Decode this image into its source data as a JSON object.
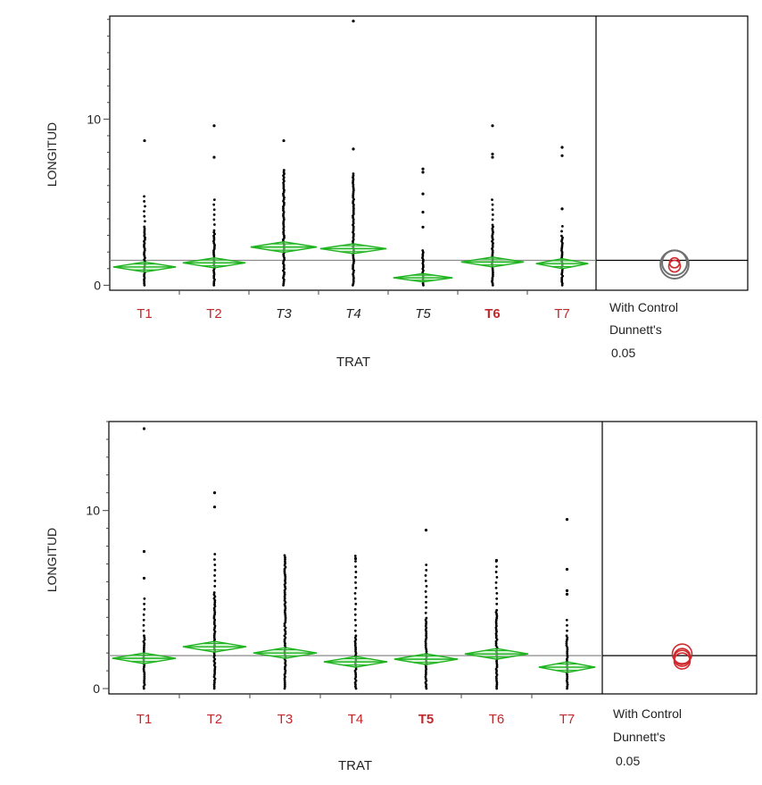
{
  "colors": {
    "diamond": "#1fb31f",
    "diamond_fill": "#bff0bf",
    "points": "#000000",
    "frame": "#000000",
    "grand_mean": "#8a8a8a",
    "sig_label": "#c0282d",
    "normal_label": "#222222",
    "circle_gray": "#707070",
    "circle_red": "#d0282d"
  },
  "chart_data": [
    {
      "type": "scatter",
      "title": "",
      "xlabel": "TRAT",
      "ylabel": "LONGITUD",
      "ylim": [
        -0.3,
        16.2
      ],
      "yticks": [
        0,
        10
      ],
      "categories": [
        "T1",
        "T2",
        "T3",
        "T4",
        "T5",
        "T6",
        "T7"
      ],
      "label_style": [
        "red",
        "red",
        "dark-italic",
        "dark-italic",
        "dark-italic",
        "red-bold",
        "red"
      ],
      "grand_mean": 1.5,
      "means": [
        1.1,
        1.35,
        2.3,
        2.2,
        0.45,
        1.4,
        1.3
      ],
      "ci_halfwidth": [
        0.3,
        0.3,
        0.32,
        0.3,
        0.25,
        0.3,
        0.3
      ],
      "diamond_width": [
        0.9,
        0.9,
        0.95,
        0.95,
        0.85,
        0.9,
        0.75
      ],
      "dense_max": [
        3.6,
        3.4,
        7.0,
        6.8,
        2.2,
        3.7,
        3.0
      ],
      "sparse_max": [
        5.6,
        5.4,
        7.0,
        6.8,
        2.2,
        5.4,
        3.7
      ],
      "outliers": [
        [
          8.7
        ],
        [
          7.7,
          9.6
        ],
        [
          8.7
        ],
        [
          8.2,
          15.9
        ],
        [
          3.5,
          4.4,
          5.5,
          6.8,
          7.0
        ],
        [
          7.7,
          7.9,
          9.6
        ],
        [
          4.6,
          7.8,
          8.3
        ]
      ],
      "comparison": {
        "title": "With Control",
        "method": "Dunnett's",
        "alpha": "0.05",
        "circle_color": "gray",
        "circles": [
          {
            "center": 1.35,
            "radius": 0.75,
            "color": "gray"
          },
          {
            "center": 1.25,
            "radius": 0.85,
            "color": "gray"
          },
          {
            "center": 1.35,
            "radius": 0.3,
            "color": "red"
          },
          {
            "center": 1.15,
            "radius": 0.35,
            "color": "red"
          }
        ]
      }
    },
    {
      "type": "scatter",
      "title": "",
      "xlabel": "TRAT",
      "ylabel": "LONGITUD",
      "ylim": [
        -0.3,
        15.0
      ],
      "yticks": [
        0,
        10
      ],
      "categories": [
        "T1",
        "T2",
        "T3",
        "T4",
        "T5",
        "T6",
        "T7"
      ],
      "label_style": [
        "red",
        "red",
        "red",
        "red",
        "red-bold",
        "red",
        "red"
      ],
      "grand_mean": 1.85,
      "means": [
        1.7,
        2.35,
        2.0,
        1.5,
        1.65,
        1.95,
        1.2
      ],
      "ci_halfwidth": [
        0.3,
        0.3,
        0.3,
        0.3,
        0.3,
        0.3,
        0.3
      ],
      "diamond_width": [
        0.9,
        0.9,
        0.9,
        0.9,
        0.9,
        0.9,
        0.8
      ],
      "dense_max": [
        3.0,
        5.5,
        7.5,
        3.0,
        4.0,
        4.5,
        3.0
      ],
      "sparse_max": [
        5.2,
        7.8,
        7.5,
        7.5,
        7.2,
        7.3,
        4.0
      ],
      "outliers": [
        [
          6.2,
          7.7,
          14.6
        ],
        [
          10.2,
          11.0
        ],
        [],
        [
          7.3
        ],
        [
          8.9
        ],
        [
          7.2
        ],
        [
          5.3,
          5.5,
          6.7,
          9.5
        ]
      ],
      "comparison": {
        "title": "With Control",
        "method": "Dunnett's",
        "alpha": "0.05",
        "circles": [
          {
            "center": 1.95,
            "radius": 0.55,
            "color": "red"
          },
          {
            "center": 1.8,
            "radius": 0.45,
            "color": "red"
          },
          {
            "center": 1.7,
            "radius": 0.45,
            "color": "red"
          },
          {
            "center": 1.55,
            "radius": 0.45,
            "color": "red"
          }
        ]
      }
    }
  ]
}
